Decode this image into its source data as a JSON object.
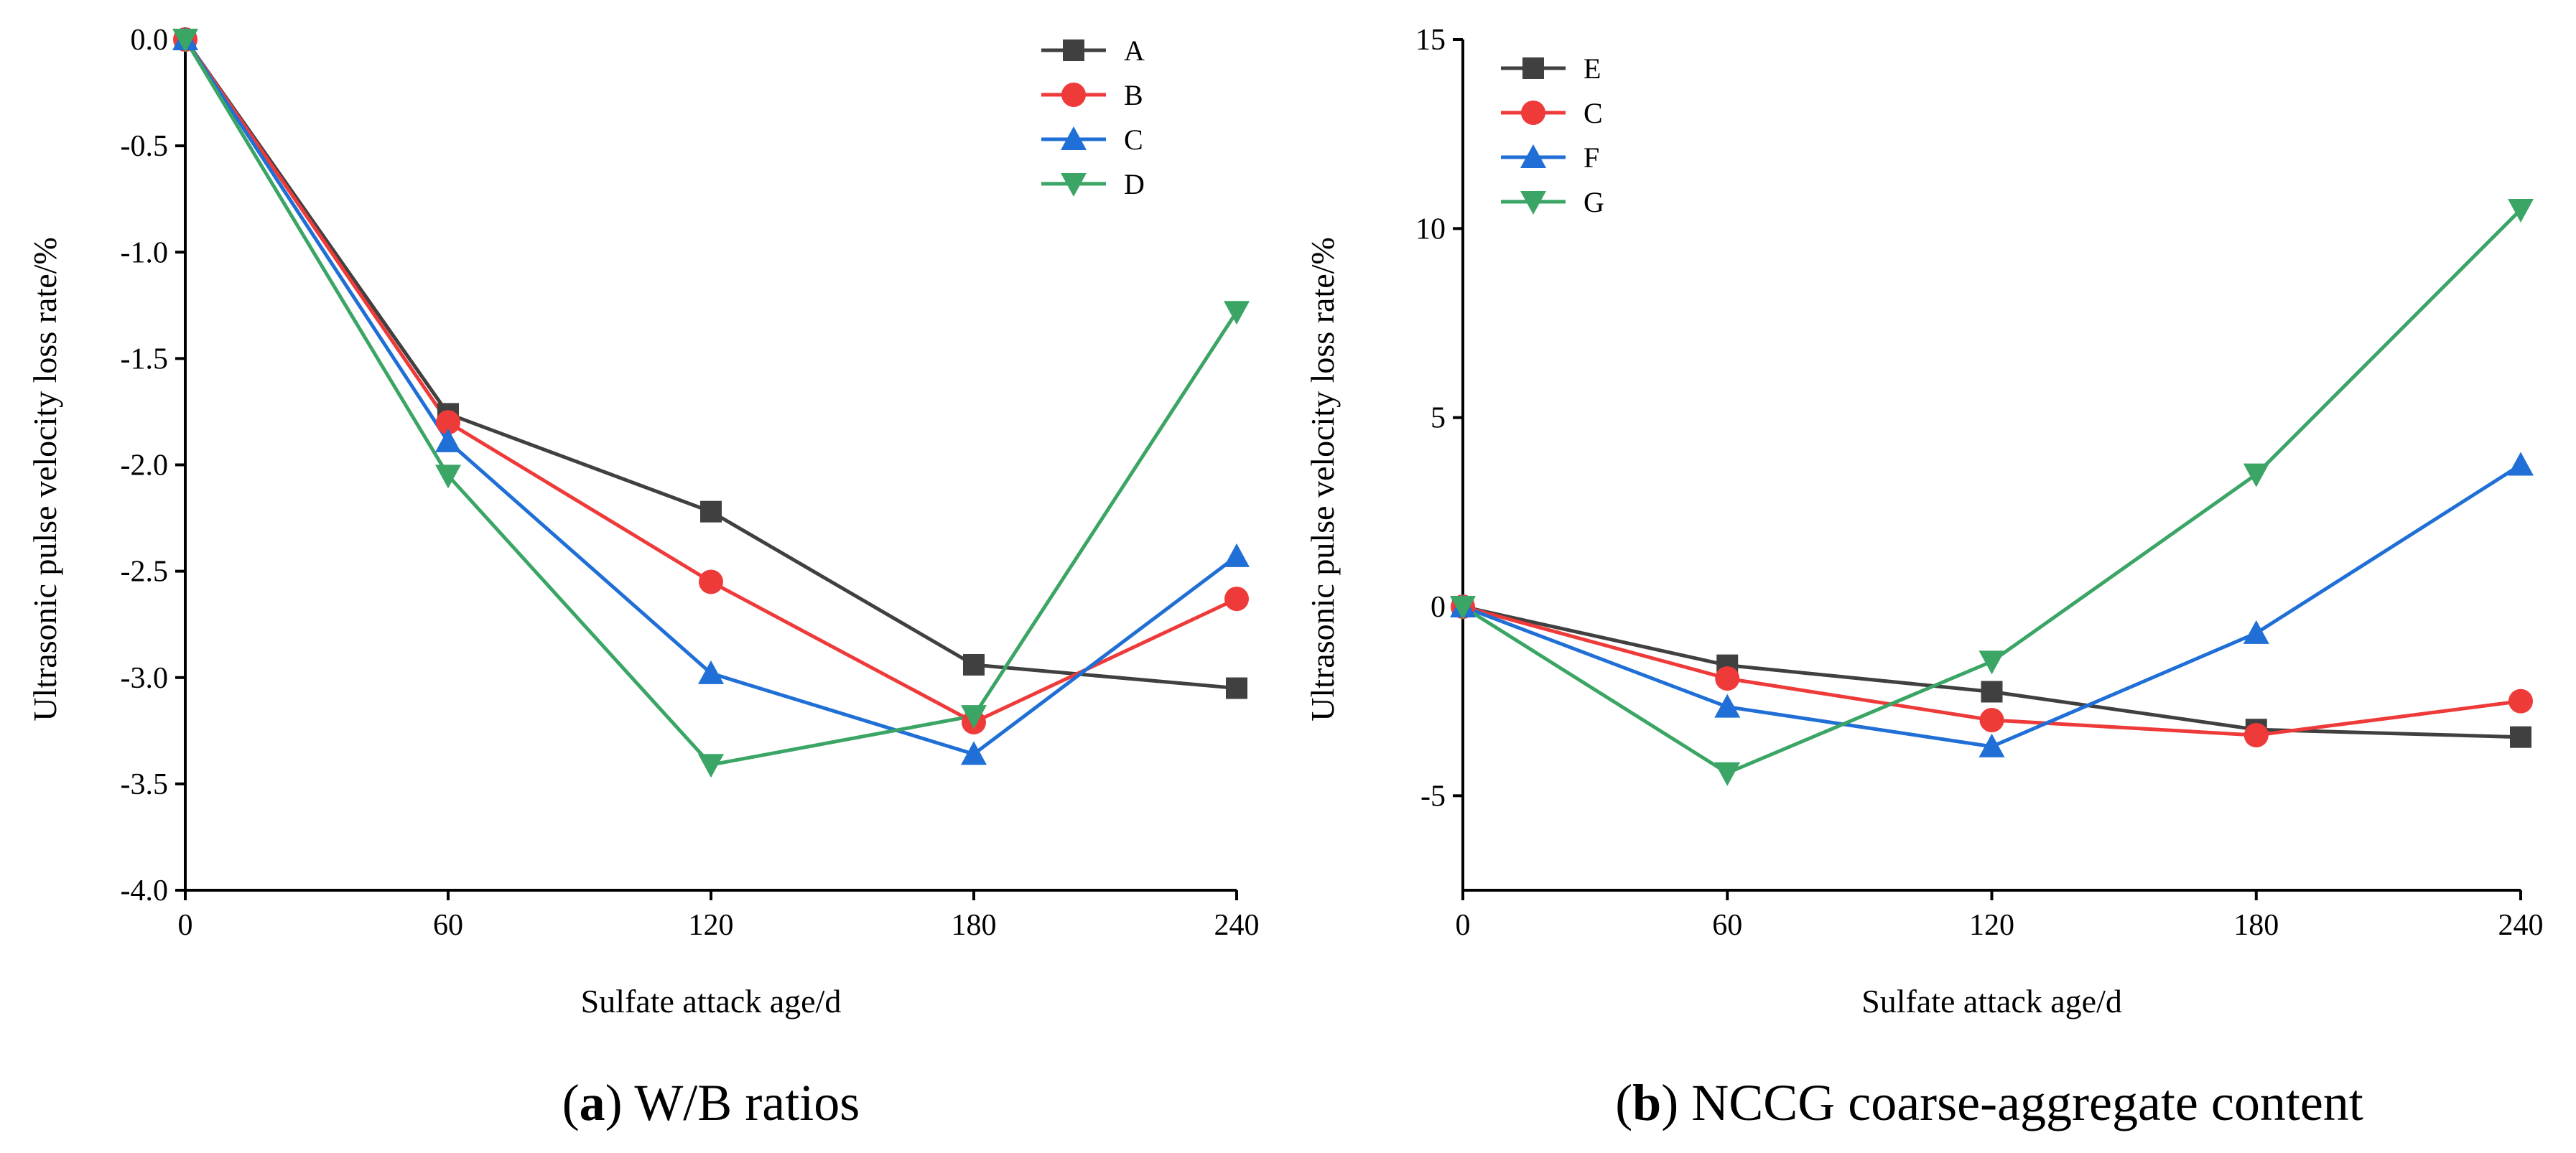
{
  "chart_data": [
    {
      "type": "line",
      "panel_letter": "a",
      "caption": "W/B ratios",
      "xlabel": "Sulfate attack age/d",
      "ylabel": "Ultrasonic pulse velocity loss rate/%",
      "x": [
        0,
        60,
        120,
        180,
        240
      ],
      "xticks": [
        "0",
        "60",
        "120",
        "180",
        "240"
      ],
      "xlim": [
        0,
        240
      ],
      "ylim": [
        -4.0,
        0.0
      ],
      "yticks": [
        0.0,
        -0.5,
        -1.0,
        -1.5,
        -2.0,
        -2.5,
        -3.0,
        -3.5,
        -4.0
      ],
      "ytick_labels": [
        "0.0",
        "-0.5",
        "-1.0",
        "-1.5",
        "-2.0",
        "-2.5",
        "-3.0",
        "-3.5",
        "-4.0"
      ],
      "legend_position": "top-right",
      "series": [
        {
          "name": "A",
          "color": "#404040",
          "marker": "square",
          "values": [
            0,
            -1.76,
            -2.22,
            -2.94,
            -3.05
          ]
        },
        {
          "name": "B",
          "color": "#ef3a3a",
          "marker": "circle",
          "values": [
            0,
            -1.8,
            -2.55,
            -3.21,
            -2.63
          ]
        },
        {
          "name": "C",
          "color": "#1f6fd6",
          "marker": "triangle-up",
          "values": [
            0,
            -1.89,
            -2.98,
            -3.36,
            -2.43
          ]
        },
        {
          "name": "D",
          "color": "#3aa565",
          "marker": "triangle-down",
          "values": [
            0,
            -2.05,
            -3.41,
            -3.18,
            -1.28
          ]
        }
      ]
    },
    {
      "type": "line",
      "panel_letter": "b",
      "caption": "NCCG coarse-aggregate content",
      "xlabel": "Sulfate attack age/d",
      "ylabel": "Ultrasonic pulse velocity loss rate/%",
      "x": [
        0,
        60,
        120,
        180,
        240
      ],
      "xticks": [
        "0",
        "60",
        "120",
        "180",
        "240"
      ],
      "xlim": [
        0,
        240
      ],
      "ylim": [
        -7.5,
        15
      ],
      "yticks": [
        15,
        10,
        5,
        0,
        -5
      ],
      "ytick_labels": [
        "15",
        "10",
        "5",
        "0",
        "-5"
      ],
      "legend_position": "top-left",
      "series": [
        {
          "name": "E",
          "color": "#404040",
          "marker": "square",
          "values": [
            0,
            -1.55,
            -2.25,
            -3.25,
            -3.45
          ]
        },
        {
          "name": "C",
          "color": "#ef3a3a",
          "marker": "circle",
          "values": [
            0,
            -1.9,
            -3.0,
            -3.4,
            -2.5
          ]
        },
        {
          "name": "F",
          "color": "#1f6fd6",
          "marker": "triangle-up",
          "values": [
            0,
            -2.65,
            -3.7,
            -0.7,
            3.75
          ]
        },
        {
          "name": "G",
          "color": "#3aa565",
          "marker": "triangle-down",
          "values": [
            0,
            -4.4,
            -1.45,
            3.5,
            10.5
          ]
        }
      ]
    }
  ]
}
